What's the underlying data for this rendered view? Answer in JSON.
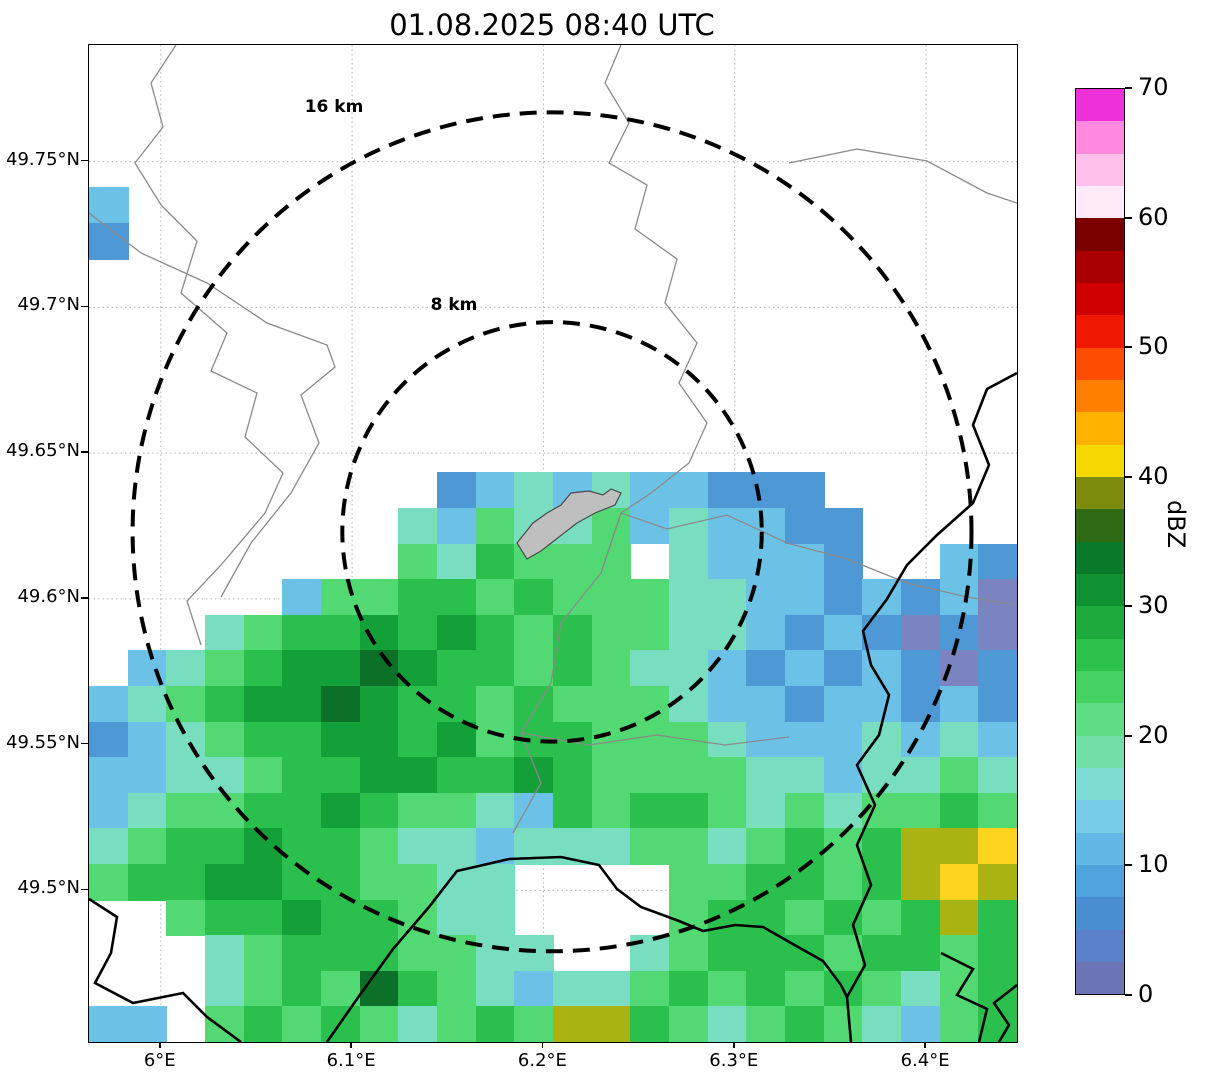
{
  "title": "01.08.2025 08:40 UTC",
  "chart_data": {
    "type": "heatmap",
    "title": "01.08.2025 08:40 UTC",
    "xlabel": "",
    "ylabel": "",
    "xlim": [
      5.9625,
      6.4475
    ],
    "ylim": [
      49.448,
      49.79
    ],
    "grid": true,
    "xticks": [
      {
        "value": 6.0,
        "label": "6°E"
      },
      {
        "value": 6.1,
        "label": "6.1°E"
      },
      {
        "value": 6.2,
        "label": "6.2°E"
      },
      {
        "value": 6.3,
        "label": "6.3°E"
      },
      {
        "value": 6.4,
        "label": "6.4°E"
      }
    ],
    "yticks": [
      {
        "value": 49.75,
        "label": "49.75°N"
      },
      {
        "value": 49.7,
        "label": "49.7°N"
      },
      {
        "value": 49.65,
        "label": "49.65°N"
      },
      {
        "value": 49.6,
        "label": "49.6°N"
      },
      {
        "value": 49.55,
        "label": "49.55°N"
      },
      {
        "value": 49.5,
        "label": "49.5°N"
      }
    ],
    "colorbar": {
      "label": "dBZ",
      "min": 0,
      "max": 70,
      "ticks": [
        0,
        10,
        20,
        30,
        40,
        50,
        60,
        70
      ],
      "colors": [
        "#6b74b4",
        "#5980c8",
        "#4a8ed2",
        "#4fa3dc",
        "#62b8e4",
        "#77cde8",
        "#7edcd3",
        "#72dfa9",
        "#5edd85",
        "#44d263",
        "#2cc14b",
        "#1cab3c",
        "#119232",
        "#0a7a2a",
        "#2e6b14",
        "#7e8c0e",
        "#f5d800",
        "#ffb300",
        "#ff8000",
        "#ff4d00",
        "#f01800",
        "#d00000",
        "#a80000",
        "#7a0000",
        "#ffeaf7",
        "#ffc0ec",
        "#ff8ae0",
        "#ee30d8"
      ]
    },
    "range_rings": {
      "center": {
        "lon": 6.2045,
        "lat": 49.623
      },
      "rings": [
        {
          "label": "8 km",
          "km": 8
        },
        {
          "label": "16 km",
          "km": 16
        }
      ]
    },
    "reflectivity_grid": {
      "units": "dBZ",
      "cols": 24,
      "rows": 28,
      "palette": {
        "1": "#7b84c0",
        "2": "#4f98d6",
        "3": "#6cc2e6",
        "4": "#79ddc0",
        "5": "#52d973",
        "6": "#2bc04e",
        "7": "#14a038",
        "8": "#0c7028",
        "9": "#a9b312",
        "y": "#ffd41e"
      },
      "palette_dbz": {
        "1": 2.5,
        "2": 7.5,
        "3": 12.5,
        "4": 17.5,
        "5": 22.5,
        "6": 27.5,
        "7": 32.5,
        "8": 37.5,
        "9": 39,
        "y": 42.5
      },
      "rows_tokens": [
        "........................",
        "........................",
        "........................",
        "........................",
        "3.......................",
        "2.......................",
        "........................",
        "........................",
        "........................",
        "........................",
        "........................",
        "........................",
        ".........2343433222.....",
        "........435445343322....",
        "........546555.43332..32",
        ".....3556656555443323231",
        "...456676765655443232121",
        ".34567787665654432323212",
        "345677876656555433233232",
        "234566776756655543334343",
        "334456677667655554434454",
        "345566765543656654545565",
        "45667665443444554565699y",
        "56677665544....5566569y9",
        "..566766544....566565696",
        "...456665544..4566656656",
        "...456586543445656565456",
        "33.565654565996545654356"
      ]
    }
  }
}
